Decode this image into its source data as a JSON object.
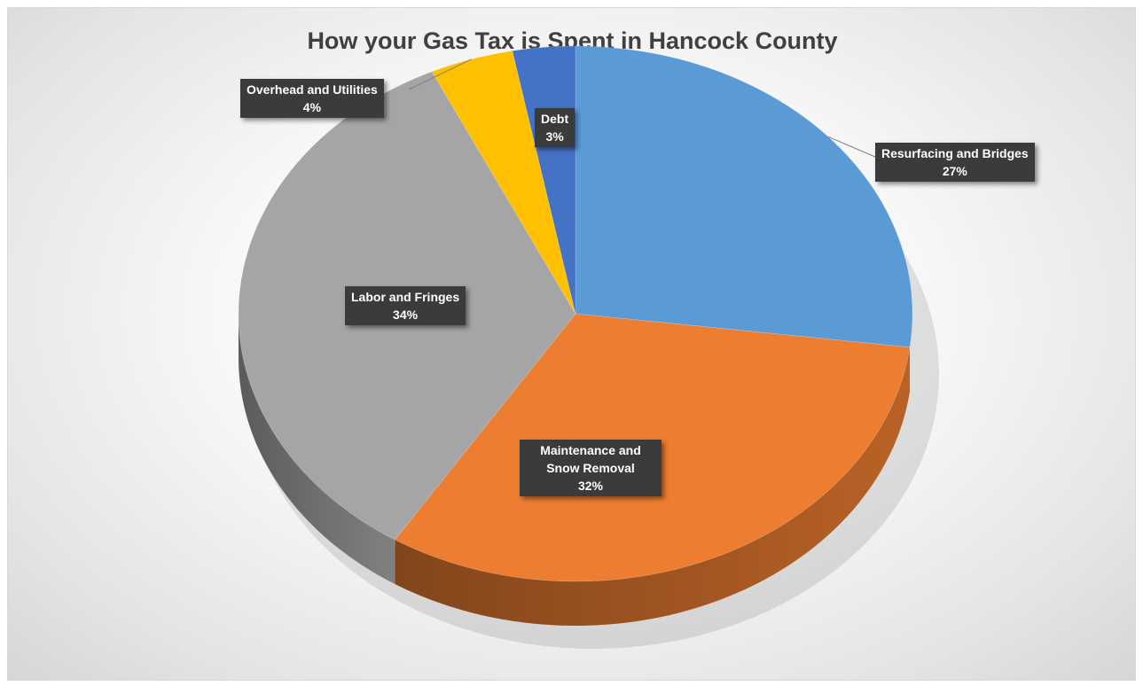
{
  "chart_data": {
    "type": "pie",
    "title": "How your Gas Tax is Spent in Hancock County",
    "three_d": true,
    "slices": [
      {
        "name": "Resurfacing and Bridges",
        "value": 27,
        "label": "27%",
        "color": "#5b9bd5"
      },
      {
        "name": "Maintenance and Snow Removal",
        "value": 32,
        "label": "32%",
        "color": "#ed7d31"
      },
      {
        "name": "Labor and Fringes",
        "value": 34,
        "label": "34%",
        "color": "#a5a5a5"
      },
      {
        "name": "Overhead and Utilities",
        "value": 4,
        "label": "4%",
        "color": "#ffc000"
      },
      {
        "name": "Debt",
        "value": 3,
        "label": "3%",
        "color": "#4472c4"
      }
    ]
  }
}
